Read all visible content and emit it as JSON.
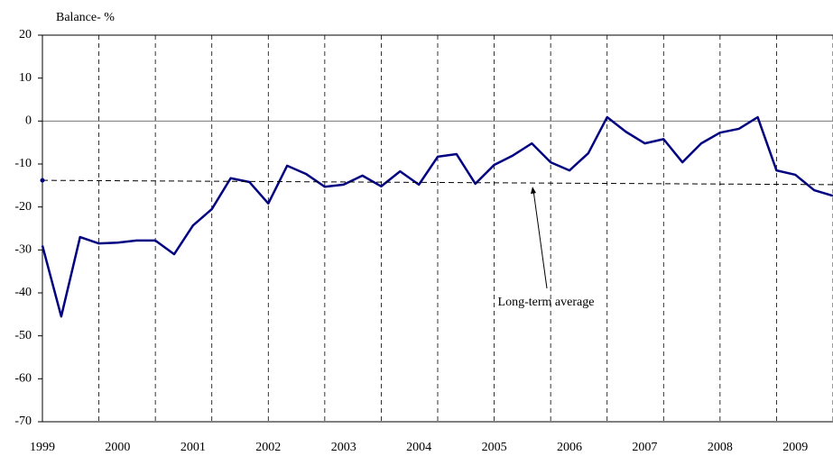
{
  "chart_data": {
    "type": "line",
    "y_label": "Balance-  %",
    "categories": [
      "1999",
      null,
      null,
      null,
      "2000",
      null,
      null,
      null,
      "2001",
      null,
      null,
      null,
      "2002",
      null,
      null,
      null,
      "2003",
      null,
      null,
      null,
      "2004",
      null,
      null,
      null,
      "2005",
      null,
      null,
      null,
      "2006",
      null,
      null,
      null,
      "2007",
      null,
      null,
      null,
      "2008",
      null,
      null,
      null,
      "2009",
      null,
      null
    ],
    "series": [
      {
        "name": "Balance",
        "color": "#000080",
        "values": [
          -29,
          -45.5,
          -27,
          -28.5,
          -28.3,
          -27.8,
          -27.8,
          -31,
          -24.3,
          -20.5,
          -13.3,
          -14.2,
          -19.2,
          -10.4,
          -12.3,
          -15.3,
          -14.8,
          -12.7,
          -15.2,
          -11.7,
          -14.8,
          -8.3,
          -7.7,
          -14.6,
          -10.2,
          -8,
          -5.2,
          -9.6,
          -11.5,
          -7.5,
          0.9,
          -2.5,
          -5.2,
          -4.2,
          -9.6,
          -5.2,
          -2.7,
          -1.8,
          0.9,
          -11.5,
          -12.5,
          -16.1,
          -17.4
        ]
      }
    ],
    "average": {
      "label": "Long-term average",
      "values": [
        -13.8,
        -14.8
      ]
    },
    "ylim": [
      -70,
      20
    ],
    "yticks": [
      -70,
      -60,
      -50,
      -40,
      -30,
      -20,
      -10,
      0,
      10,
      20
    ],
    "zero_line": true,
    "vgrid_every": 3
  }
}
